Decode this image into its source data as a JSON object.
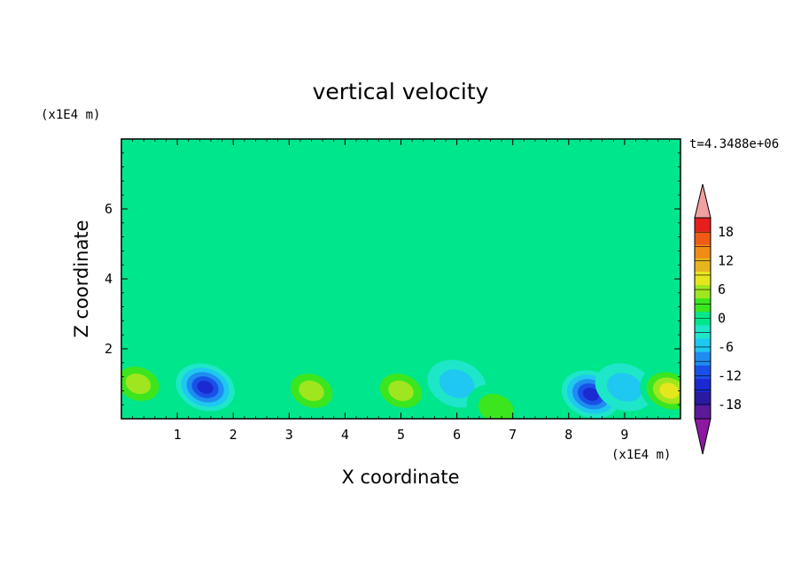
{
  "chart_data": {
    "type": "heatmap",
    "title": "vertical velocity",
    "xlabel": "X coordinate",
    "ylabel": "Z coordinate",
    "x_unit": "(x1E4 m)",
    "y_unit": "(x1E4 m)",
    "time_label": "t=4.3488e+06",
    "xlim": [
      0,
      10
    ],
    "ylim": [
      0,
      8
    ],
    "x_ticks": [
      1,
      2,
      3,
      4,
      5,
      6,
      7,
      8,
      9
    ],
    "y_ticks": [
      2,
      4,
      6
    ],
    "colorbar": {
      "levels": [
        -21,
        -18,
        -15,
        -12,
        -9,
        -6,
        -3,
        0,
        3,
        6,
        9,
        12,
        15,
        18,
        21
      ],
      "labels": [
        18,
        12,
        6,
        0,
        -6,
        -12,
        -18
      ],
      "colors": [
        "#5a1a9a",
        "#2a1aa0",
        "#1a2ad0",
        "#1a50e8",
        "#1e8cf0",
        "#1ec8f0",
        "#1ee6c8",
        "#00e68c",
        "#3ce61e",
        "#a0e61e",
        "#e6e61e",
        "#e6b41e",
        "#f08c14",
        "#f05a14",
        "#e61e1e"
      ],
      "over_color": "#f0a0a0",
      "under_color": "#8c1aa0",
      "background_color": "#00e68c"
    },
    "features": [
      {
        "x": 0.3,
        "z": 1.0,
        "value": 7
      },
      {
        "x": 1.5,
        "z": 0.9,
        "value": -14
      },
      {
        "x": 3.4,
        "z": 0.8,
        "value": 8
      },
      {
        "x": 5.0,
        "z": 0.8,
        "value": 7
      },
      {
        "x": 6.0,
        "z": 1.0,
        "value": -4
      },
      {
        "x": 6.7,
        "z": 0.3,
        "value": 5
      },
      {
        "x": 8.4,
        "z": 0.7,
        "value": -15
      },
      {
        "x": 9.0,
        "z": 0.9,
        "value": -5
      },
      {
        "x": 9.8,
        "z": 0.8,
        "value": 11
      }
    ]
  }
}
